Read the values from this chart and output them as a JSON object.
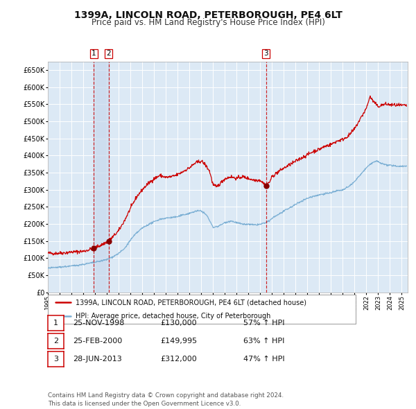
{
  "title": "1399A, LINCOLN ROAD, PETERBOROUGH, PE4 6LT",
  "subtitle": "Price paid vs. HM Land Registry's House Price Index (HPI)",
  "title_fontsize": 10,
  "subtitle_fontsize": 8.5,
  "background_color": "#ffffff",
  "plot_bg_color": "#dce9f5",
  "grid_color": "#ffffff",
  "red_line_color": "#cc0000",
  "blue_line_color": "#7bafd4",
  "sale_marker_color": "#880000",
  "dashed_line_color": "#cc0000",
  "shade_color": "#c5d8ec",
  "ylim": [
    0,
    675000
  ],
  "yticks": [
    0,
    50000,
    100000,
    150000,
    200000,
    250000,
    300000,
    350000,
    400000,
    450000,
    500000,
    550000,
    600000,
    650000
  ],
  "ytick_labels": [
    "£0",
    "£50K",
    "£100K",
    "£150K",
    "£200K",
    "£250K",
    "£300K",
    "£350K",
    "£400K",
    "£450K",
    "£500K",
    "£550K",
    "£600K",
    "£650K"
  ],
  "sale_events": [
    {
      "label": "1",
      "date_num": 1998.9,
      "price": 130000
    },
    {
      "label": "2",
      "date_num": 2000.15,
      "price": 149995
    },
    {
      "label": "3",
      "date_num": 2013.49,
      "price": 312000
    }
  ],
  "legend_entries": [
    "1399A, LINCOLN ROAD, PETERBOROUGH, PE4 6LT (detached house)",
    "HPI: Average price, detached house, City of Peterborough"
  ],
  "table_rows": [
    {
      "num": "1",
      "date": "25-NOV-1998",
      "price": "£130,000",
      "hpi": "57% ↑ HPI"
    },
    {
      "num": "2",
      "date": "25-FEB-2000",
      "price": "£149,995",
      "hpi": "63% ↑ HPI"
    },
    {
      "num": "3",
      "date": "28-JUN-2013",
      "price": "£312,000",
      "hpi": "47% ↑ HPI"
    }
  ],
  "footnote": "Contains HM Land Registry data © Crown copyright and database right 2024.\nThis data is licensed under the Open Government Licence v3.0.",
  "xmin": 1995.0,
  "xmax": 2025.5
}
